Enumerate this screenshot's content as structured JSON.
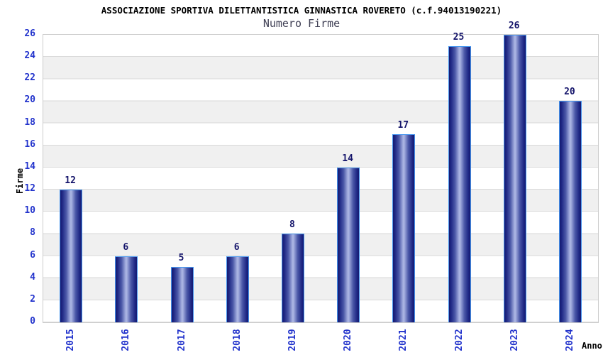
{
  "header": {
    "title": "ASSOCIAZIONE SPORTIVA DILETTANTISTICA GINNASTICA ROVERETO (c.f.94013190221)",
    "subtitle": "Numero Firme"
  },
  "chart_data": {
    "type": "bar",
    "title": "ASSOCIAZIONE SPORTIVA DILETTANTISTICA GINNASTICA ROVERETO (c.f.94013190221)",
    "subtitle": "Numero Firme",
    "xlabel": "Anno",
    "ylabel": "Firme",
    "categories": [
      "2015",
      "2016",
      "2017",
      "2018",
      "2019",
      "2020",
      "2021",
      "2022",
      "2023",
      "2024"
    ],
    "values": [
      12,
      6,
      5,
      6,
      8,
      14,
      17,
      25,
      26,
      20
    ],
    "ylim": [
      0,
      26
    ],
    "ytick_step": 2,
    "yticks": [
      0,
      2,
      4,
      6,
      8,
      10,
      12,
      14,
      16,
      18,
      20,
      22,
      24,
      26
    ],
    "grid": true,
    "legend": false,
    "bands_alternating": true,
    "colors": {
      "bar_dark": "#141a70",
      "bar_light": "#a9b3e2",
      "bar_border": "#4796ef",
      "tick_text": "#2233cc",
      "value_text": "#15156b",
      "axis_text": "#000000",
      "subtitle_text": "#404055",
      "band_gray": "#f0f0f0",
      "gridline": "#d9d9d9",
      "frame": "#cccccc",
      "background": "#ffffff"
    }
  }
}
